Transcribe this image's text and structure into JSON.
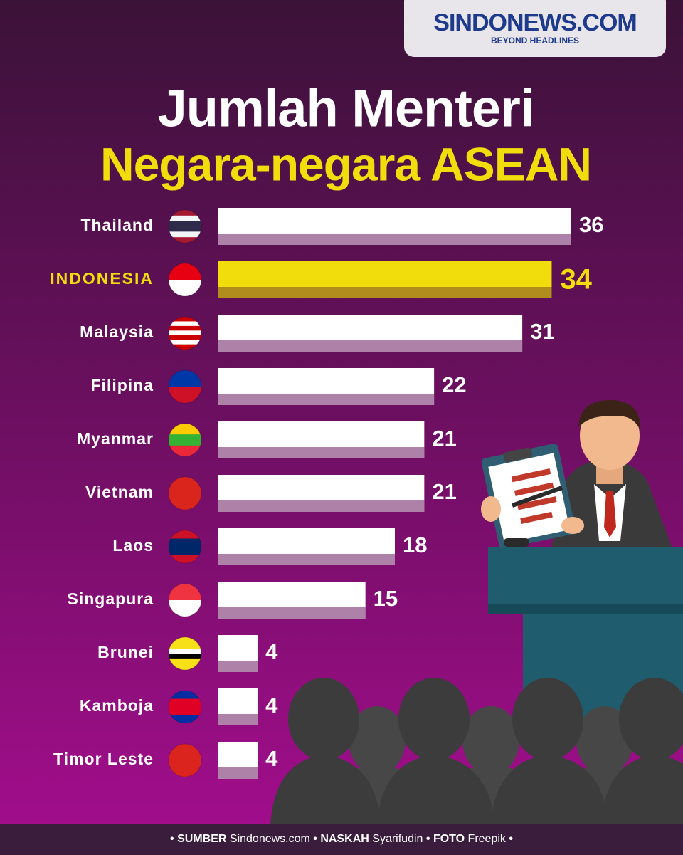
{
  "logo": {
    "name": "SINDONEWS.COM",
    "tagline": "BEYOND HEADLINES"
  },
  "chart_data": {
    "type": "bar",
    "orientation": "horizontal",
    "title": "Jumlah Menteri",
    "subtitle": "Negara-negara ASEAN",
    "categories": [
      "Thailand",
      "INDONESIA",
      "Malaysia",
      "Filipina",
      "Myanmar",
      "Vietnam",
      "Laos",
      "Singapura",
      "Brunei",
      "Kamboja",
      "Timor Leste"
    ],
    "values": [
      36,
      34,
      31,
      22,
      21,
      21,
      18,
      15,
      4,
      4,
      4
    ],
    "colors": [
      "#ffffff",
      "#f2dd0c",
      "#ffffff",
      "#ffffff",
      "#ffffff",
      "#ffffff",
      "#ffffff",
      "#ffffff",
      "#ffffff",
      "#ffffff",
      "#ffffff"
    ]
  },
  "footer": {
    "separator": "•",
    "items": [
      {
        "label": "SUMBER",
        "text": "Sindonews.com"
      },
      {
        "label": "NASKAH",
        "text": "Syarifudin"
      },
      {
        "label": "FOTO",
        "text": "Freepik"
      }
    ]
  }
}
